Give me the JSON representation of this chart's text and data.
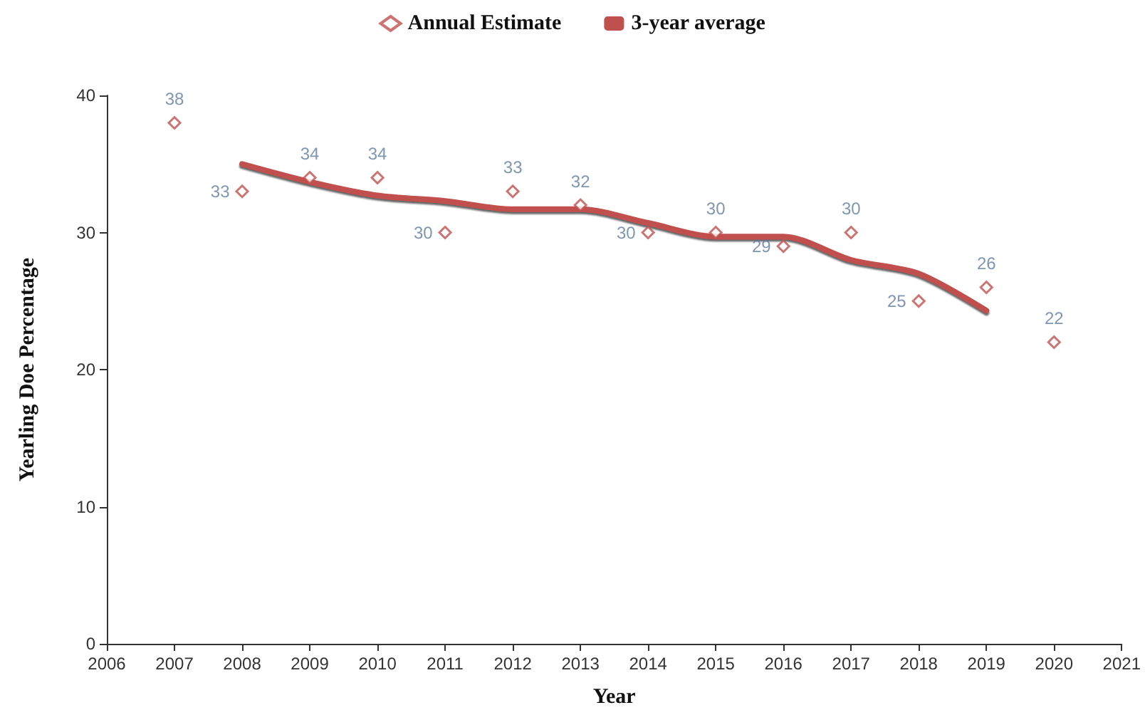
{
  "chart_data": {
    "type": "scatter",
    "xlabel": "Year",
    "ylabel": "Yearling Doe Percentage",
    "x": [
      2007,
      2008,
      2009,
      2010,
      2011,
      2012,
      2013,
      2014,
      2015,
      2016,
      2017,
      2018,
      2019,
      2020
    ],
    "series": [
      {
        "name": "Annual Estimate",
        "type": "scatter",
        "marker": "diamond",
        "color": "#c0504d",
        "values": [
          38,
          33,
          34,
          34,
          30,
          33,
          32,
          30,
          30,
          29,
          30,
          25,
          26,
          22
        ],
        "value_labels": [
          "38",
          "33",
          "34",
          "34",
          "30",
          "33",
          "32",
          "30",
          "30",
          "29",
          "30",
          "25",
          "26",
          "22"
        ]
      },
      {
        "name": "3-year average",
        "type": "line",
        "marker": "none",
        "line_style": "solid",
        "color": "#c0504d",
        "x": [
          2008,
          2009,
          2010,
          2011,
          2012,
          2013,
          2014,
          2015,
          2016,
          2017,
          2018,
          2019
        ],
        "values": [
          35,
          33.7,
          32.7,
          32.3,
          31.7,
          31.7,
          30.7,
          29.7,
          29.7,
          28,
          27,
          24.3
        ]
      }
    ],
    "xlim": [
      2006,
      2021
    ],
    "xticks": [
      2006,
      2007,
      2008,
      2009,
      2010,
      2011,
      2012,
      2013,
      2014,
      2015,
      2016,
      2017,
      2018,
      2019,
      2020,
      2021
    ],
    "ylim": [
      0,
      40
    ],
    "yticks": [
      0,
      10,
      20,
      30,
      40
    ],
    "grid": false,
    "legend": "top"
  }
}
